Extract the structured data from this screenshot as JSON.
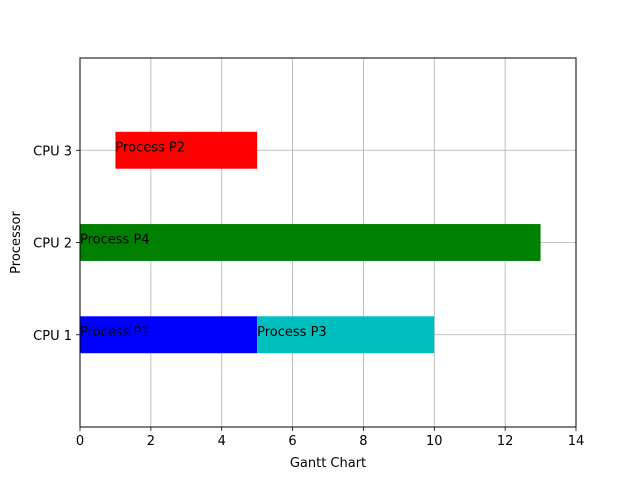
{
  "chart_data": {
    "type": "gantt",
    "title": "",
    "xlabel": "Gantt Chart",
    "ylabel": "Processor",
    "xlim": [
      0,
      14
    ],
    "xticks": [
      0,
      2,
      4,
      6,
      8,
      10,
      12,
      14
    ],
    "categories": [
      "CPU 1",
      "CPU 2",
      "CPU 3"
    ],
    "y_positions": [
      10,
      20,
      30
    ],
    "ylim": [
      0,
      40
    ],
    "bar_height": 4,
    "grid": true,
    "tasks": [
      {
        "label": "Process P1",
        "processor": "CPU 1",
        "start": 0,
        "duration": 5,
        "color": "#0000ff"
      },
      {
        "label": "Process P3",
        "processor": "CPU 1",
        "start": 5,
        "duration": 5,
        "color": "#00bfbf"
      },
      {
        "label": "Process P4",
        "processor": "CPU 2",
        "start": 0,
        "duration": 13,
        "color": "#008000"
      },
      {
        "label": "Process P2",
        "processor": "CPU 3",
        "start": 1,
        "duration": 4,
        "color": "#ff0000"
      }
    ]
  }
}
